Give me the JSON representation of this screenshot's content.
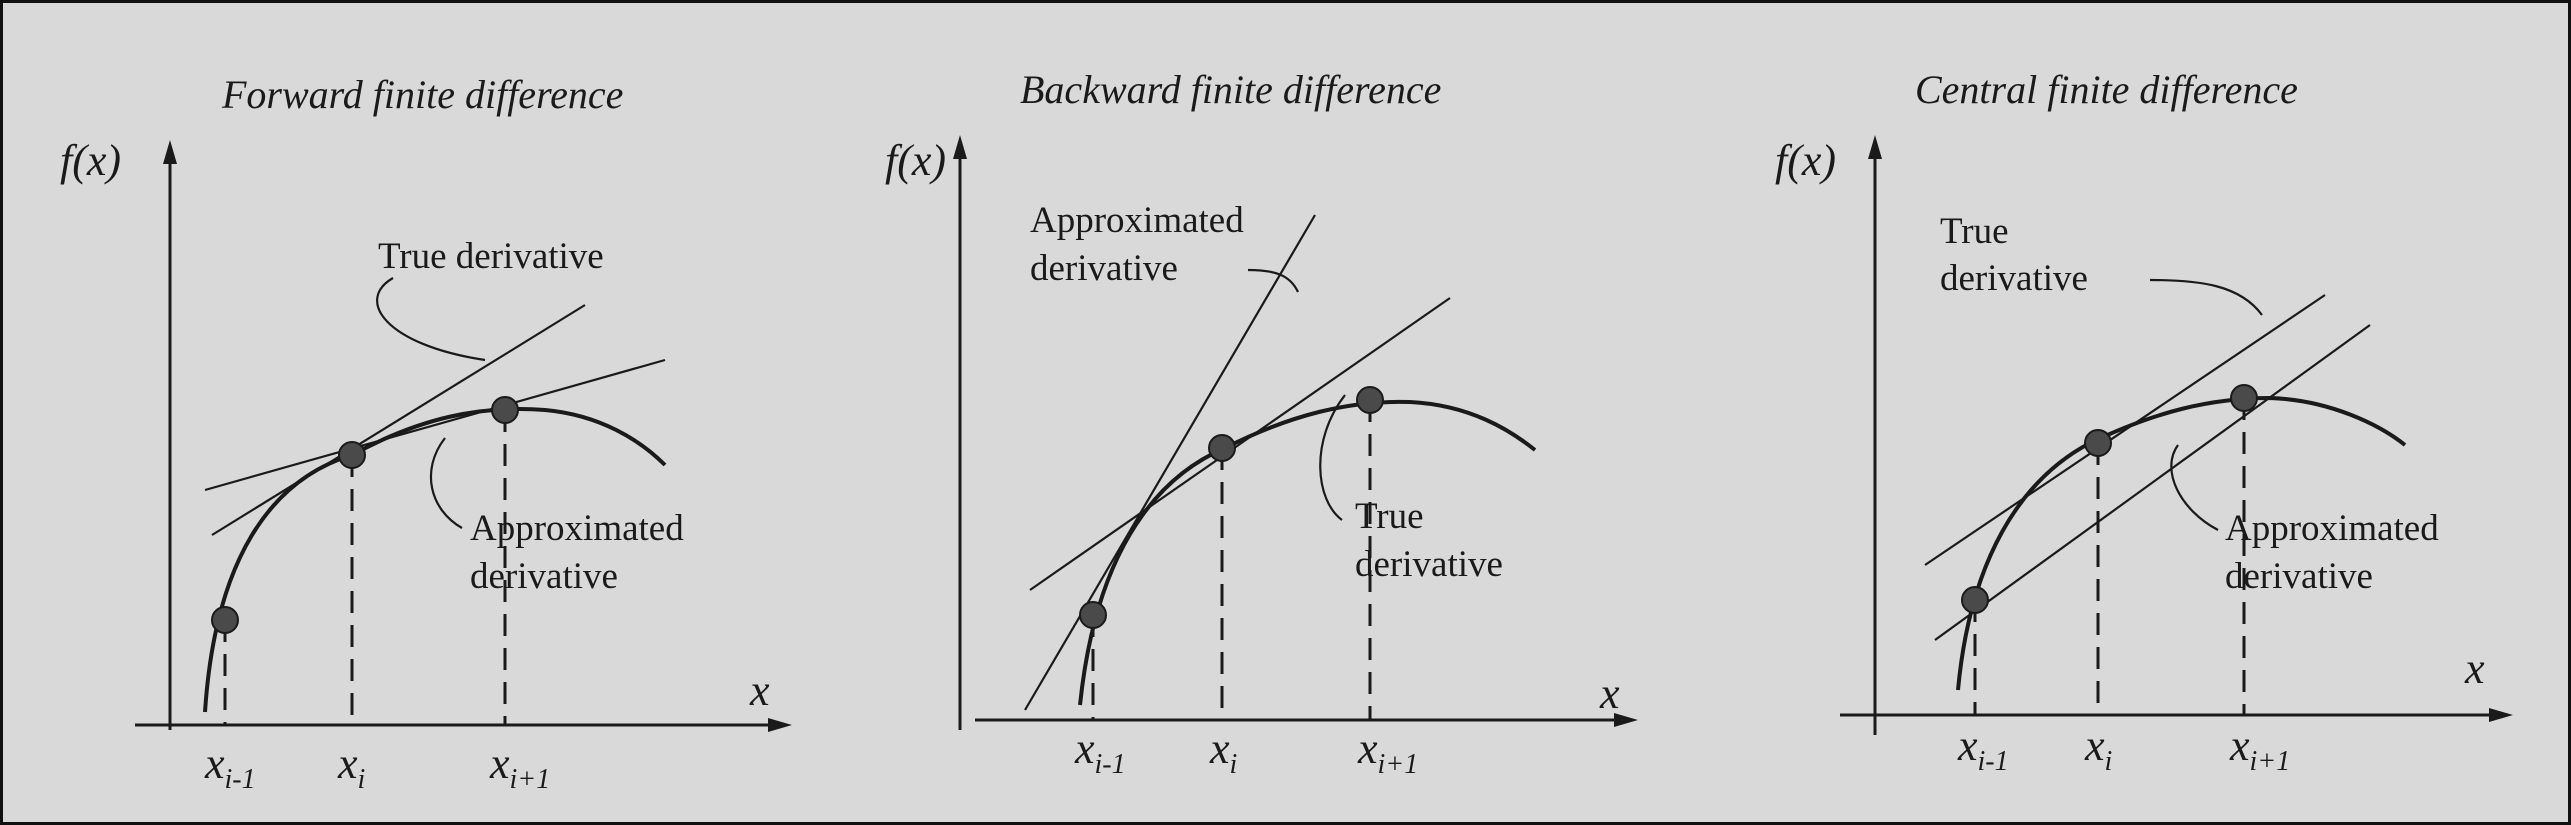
{
  "panels": [
    {
      "id": "forward",
      "title": "Forward finite difference",
      "ylabel": "f(x)",
      "xlabel": "x",
      "labels": {
        "a_line1": "True derivative",
        "b_line1": "Approximated",
        "b_line2": "derivative"
      },
      "ticks": [
        {
          "base": "x",
          "sub": "i-1"
        },
        {
          "base": "x",
          "sub": "i"
        },
        {
          "base": "x",
          "sub": "i+1"
        }
      ]
    },
    {
      "id": "backward",
      "title": "Backward finite difference",
      "ylabel": "f(x)",
      "xlabel": "x",
      "labels": {
        "a_line1": "Approximated",
        "a_line2": "derivative",
        "b_line1": "True",
        "b_line2": "derivative"
      },
      "ticks": [
        {
          "base": "x",
          "sub": "i-1"
        },
        {
          "base": "x",
          "sub": "i"
        },
        {
          "base": "x",
          "sub": "i+1"
        }
      ]
    },
    {
      "id": "central",
      "title": "Central finite difference",
      "ylabel": "f(x)",
      "xlabel": "x",
      "labels": {
        "a_line1": "True",
        "a_line2": "derivative",
        "b_line1": "Approximated",
        "b_line2": "derivative"
      },
      "ticks": [
        {
          "base": "x",
          "sub": "i-1"
        },
        {
          "base": "x",
          "sub": "i"
        },
        {
          "base": "x",
          "sub": "i+1"
        }
      ]
    }
  ],
  "colors": {
    "background": "#d9d9d9",
    "ink": "#1a1a1a",
    "point_fill": "#4a4a4a"
  }
}
